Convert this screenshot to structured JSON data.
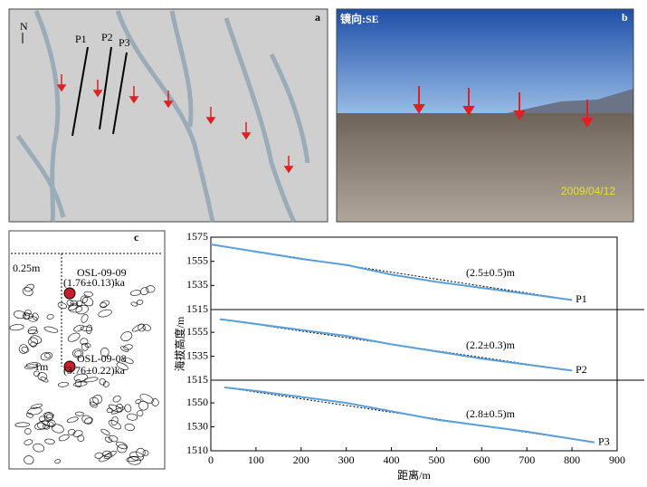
{
  "panel_a": {
    "label": "a",
    "north": "N",
    "profiles": [
      "P1",
      "P2",
      "P3"
    ]
  },
  "panel_b": {
    "label": "b",
    "direction": "镜向:SE",
    "date": "2009/04/12"
  },
  "panel_c": {
    "label": "c",
    "depth_top": "0.25m",
    "depth_bottom": "1m",
    "samples": [
      {
        "name": "OSL-09-09",
        "age": "(1.76±0.13)ka"
      },
      {
        "name": "OSL-09-08",
        "age": "(3.76±0.22)ka"
      }
    ]
  },
  "axes": {
    "x_label": "距离/m",
    "y_label": "海拔高度/m",
    "xlim": [
      0,
      900
    ],
    "xticks": [
      0,
      100,
      200,
      300,
      400,
      500,
      600,
      700,
      800,
      900
    ]
  },
  "chart_data": [
    {
      "type": "line",
      "series": [
        {
          "name": "P1",
          "color": "#5aa0d8",
          "x": [
            0,
            100,
            200,
            300,
            400,
            500,
            600,
            700,
            800
          ],
          "values": [
            1569,
            1563,
            1557,
            1552,
            1544,
            1538,
            1533,
            1528,
            1523
          ]
        }
      ],
      "annotation": "(2.5±0.5)m",
      "ylim": [
        1515,
        1575
      ],
      "yticks": [
        1515,
        1535,
        1555,
        1575
      ]
    },
    {
      "type": "line",
      "series": [
        {
          "name": "P2",
          "color": "#5aa0d8",
          "x": [
            20,
            100,
            200,
            300,
            400,
            500,
            600,
            700,
            800
          ],
          "values": [
            1566,
            1562,
            1557,
            1552,
            1545,
            1539,
            1533,
            1528,
            1523
          ]
        }
      ],
      "annotation": "(2.2±0.3)m",
      "ylim": [
        1515,
        1574
      ],
      "yticks": [
        1515,
        1535,
        1555
      ]
    },
    {
      "type": "line",
      "series": [
        {
          "name": "P3",
          "color": "#5aa0d8",
          "x": [
            30,
            100,
            200,
            300,
            400,
            500,
            600,
            700,
            850
          ],
          "values": [
            1563,
            1560,
            1555,
            1550,
            1543,
            1536,
            1531,
            1526,
            1517
          ]
        }
      ],
      "annotation": "(2.8±0.5)m",
      "ylim": [
        1510,
        1569
      ],
      "yticks": [
        1510,
        1530,
        1550
      ]
    }
  ]
}
